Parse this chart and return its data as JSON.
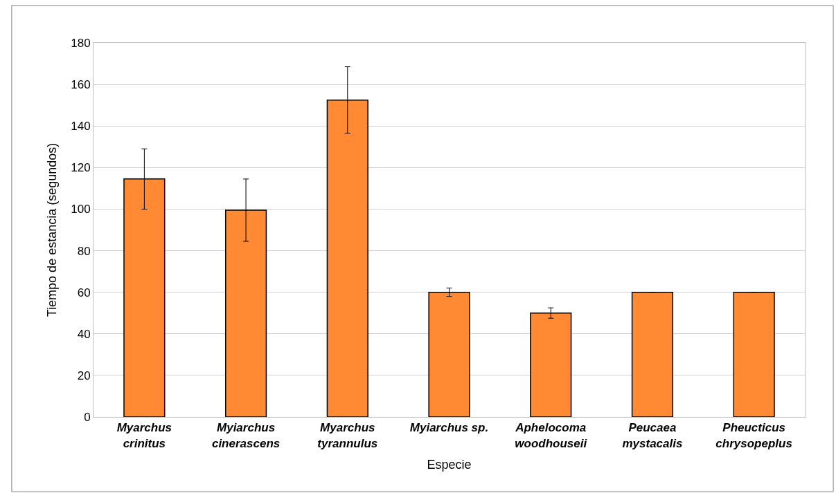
{
  "chart_data": {
    "type": "bar",
    "xlabel": "Especie",
    "ylabel": "Tiempo de estancia (segundos)",
    "categories": [
      "Myarchus crinitus",
      "Myiarchus cinerascens",
      "Myarchus tyrannulus",
      "Myiarchus sp.",
      "Aphelocoma woodhouseii",
      "Peucaea mystacalis",
      "Pheucticus chrysopeplus"
    ],
    "values": [
      114.5,
      99.5,
      152.5,
      60,
      50,
      60,
      60
    ],
    "errors": [
      14.5,
      15,
      16,
      2,
      2.5,
      null,
      null
    ],
    "color": "#ff8a33",
    "ylim": [
      0,
      180
    ],
    "yticks": [
      0,
      20,
      40,
      60,
      80,
      100,
      120,
      140,
      160,
      180
    ],
    "grid": "y",
    "legend": false
  }
}
